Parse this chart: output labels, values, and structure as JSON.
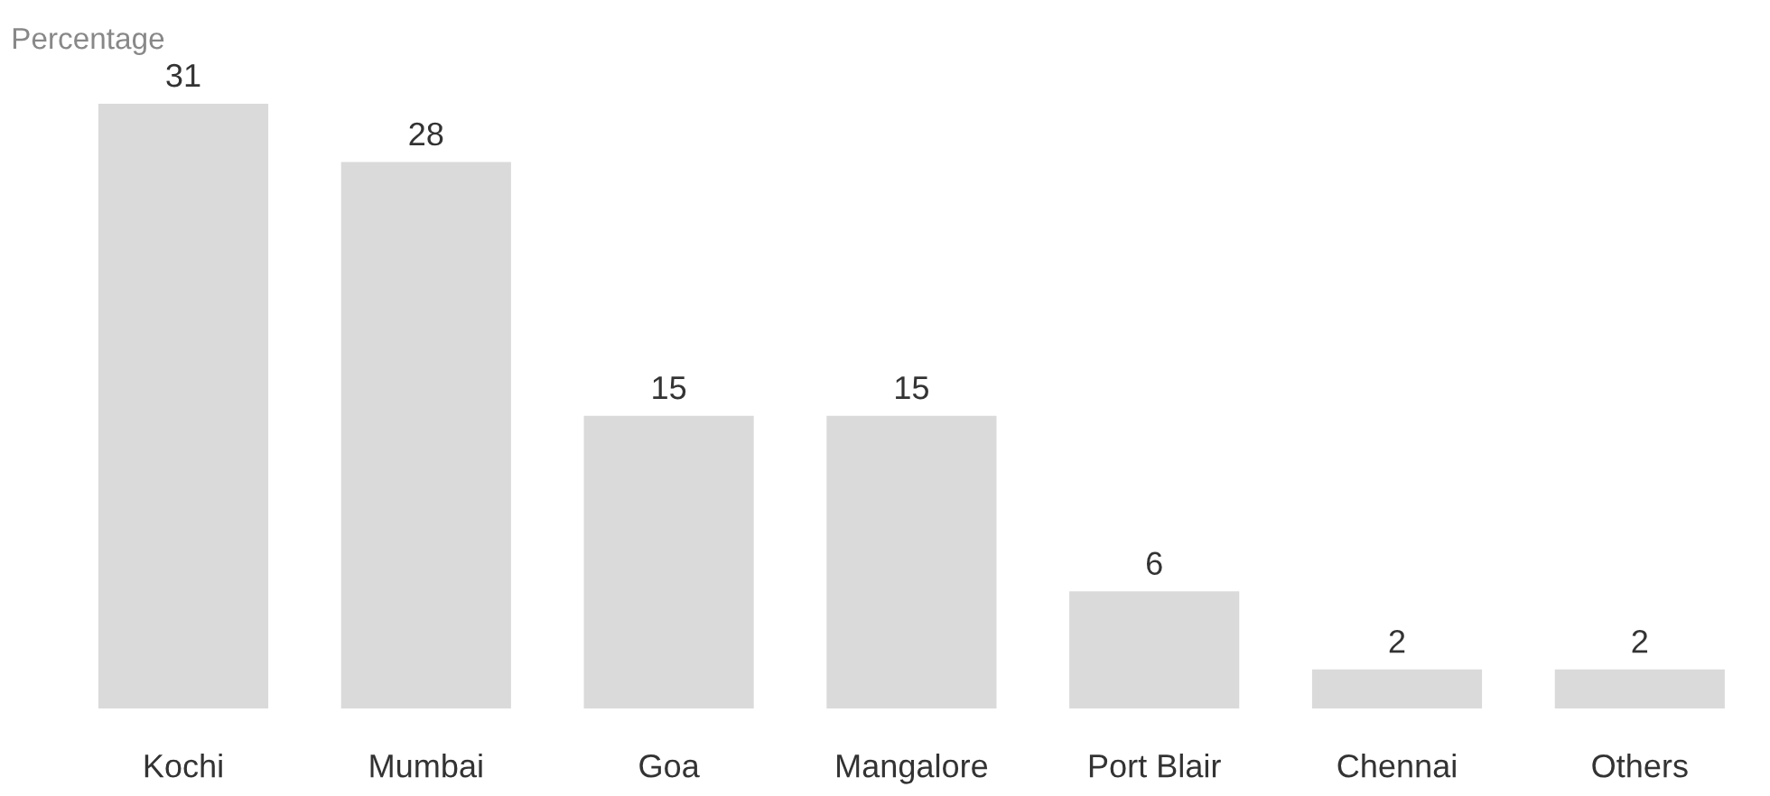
{
  "chart_data": {
    "type": "bar",
    "ylabel": "Percentage",
    "categories": [
      "Kochi",
      "Mumbai",
      "Goa",
      "Mangalore",
      "Port Blair",
      "Chennai",
      "Others"
    ],
    "values": [
      31,
      28,
      15,
      15,
      6,
      2,
      2
    ],
    "color": "#dadada",
    "data_labels": true,
    "grid": false,
    "legend": false
  }
}
